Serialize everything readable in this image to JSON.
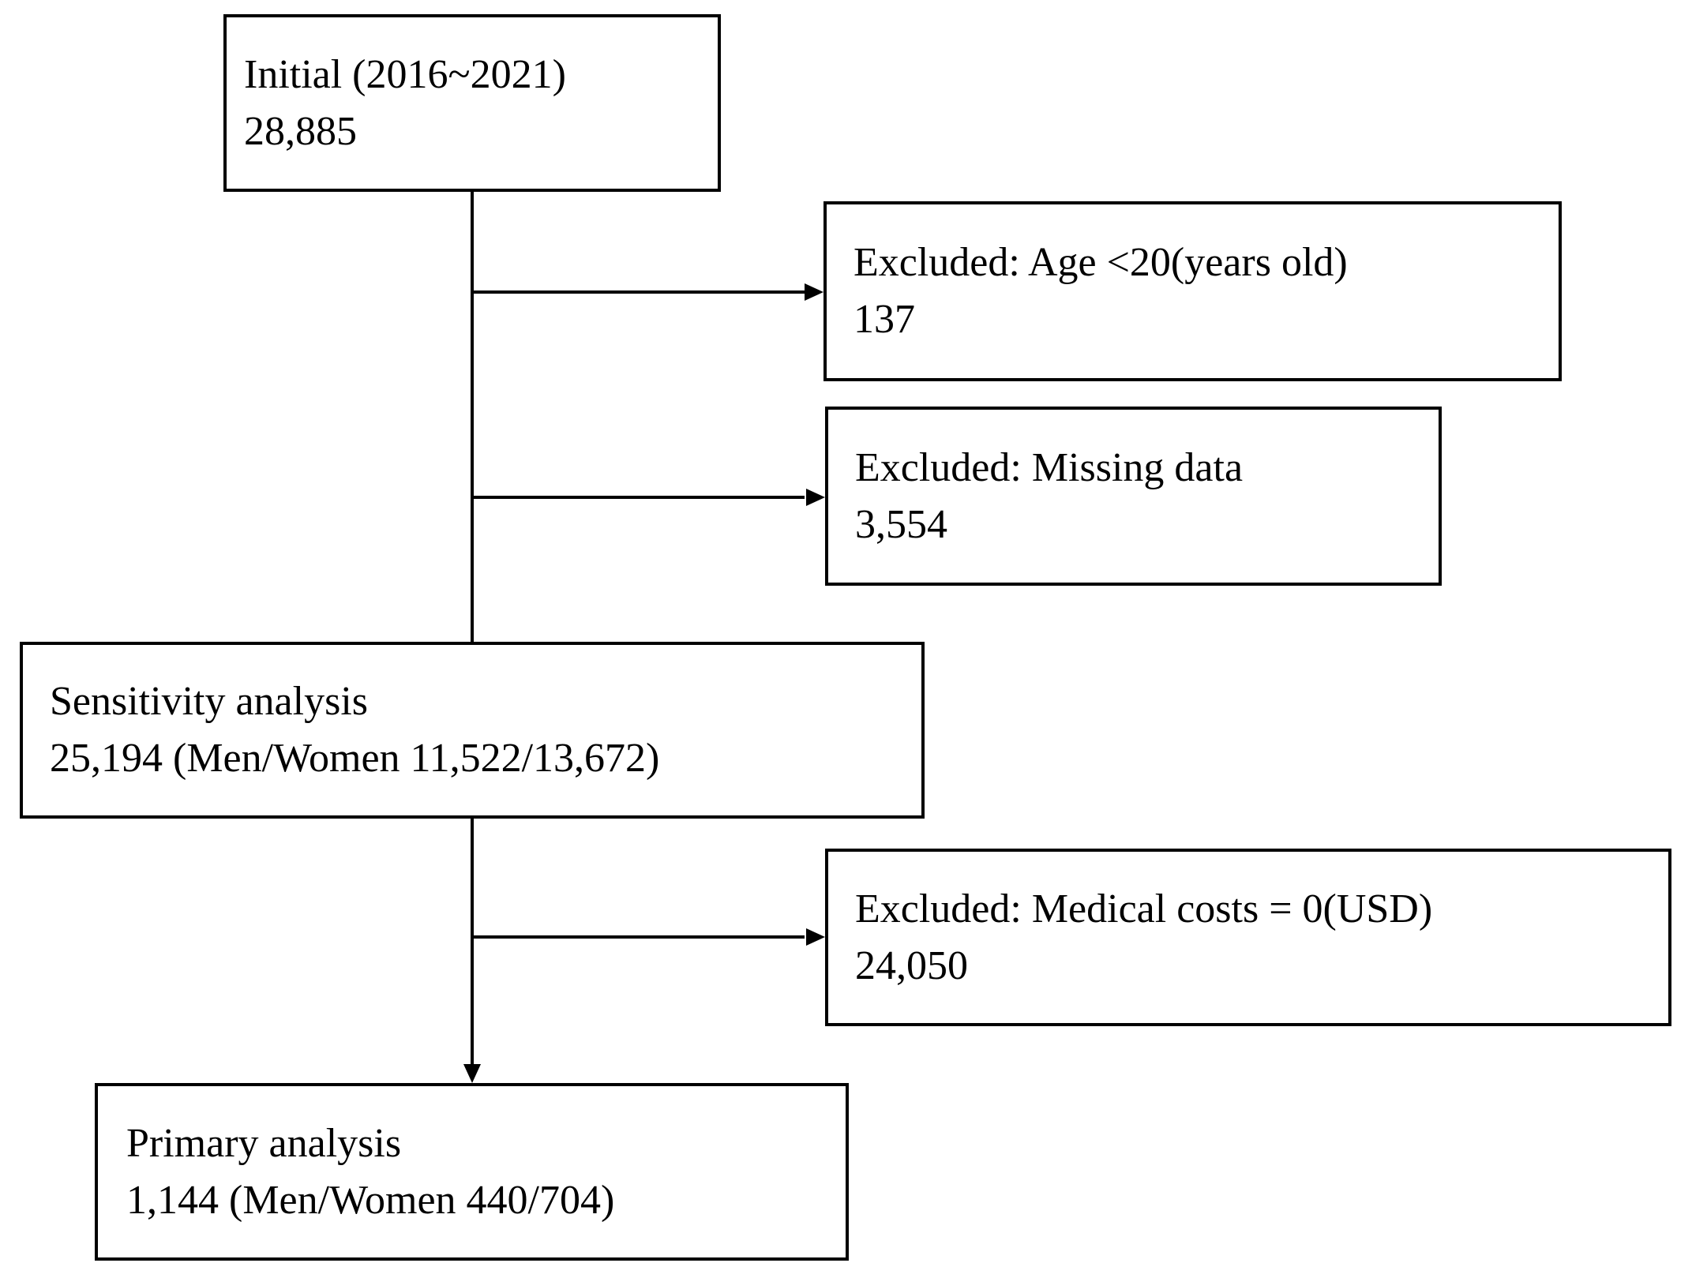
{
  "diagram": {
    "type": "flowchart",
    "colors": {
      "background": "#ffffff",
      "box_border": "#000000",
      "line": "#000000",
      "text": "#000000"
    },
    "boxes": [
      {
        "id": "initial",
        "line1": "Initial (2016~2021)",
        "line2": "28,885"
      },
      {
        "id": "excluded-age",
        "line1": "Excluded: Age <20(years old)",
        "line2": "137"
      },
      {
        "id": "excluded-missing-data",
        "line1": "Excluded: Missing data",
        "line2": "3,554"
      },
      {
        "id": "sensitivity-analysis",
        "line1": "Sensitivity analysis",
        "line2": "25,194 (Men/Women 11,522/13,672)"
      },
      {
        "id": "excluded-medical-cost",
        "line1": "Excluded: Medical costs = 0(USD)",
        "line2": "24,050"
      },
      {
        "id": "primary-analysis",
        "line1": "Primary analysis",
        "line2": "1,144 (Men/Women 440/704)"
      }
    ],
    "connectors": [
      {
        "from": "initial",
        "to": "excluded-age",
        "style": "arrow-right"
      },
      {
        "from": "initial",
        "to": "excluded-missing-data",
        "style": "arrow-right"
      },
      {
        "from": "initial",
        "to": "sensitivity-analysis",
        "style": "plain-line"
      },
      {
        "from": "sensitivity-analysis",
        "to": "excluded-medical-cost",
        "style": "arrow-right"
      },
      {
        "from": "sensitivity-analysis",
        "to": "primary-analysis",
        "style": "arrow-down"
      }
    ]
  }
}
